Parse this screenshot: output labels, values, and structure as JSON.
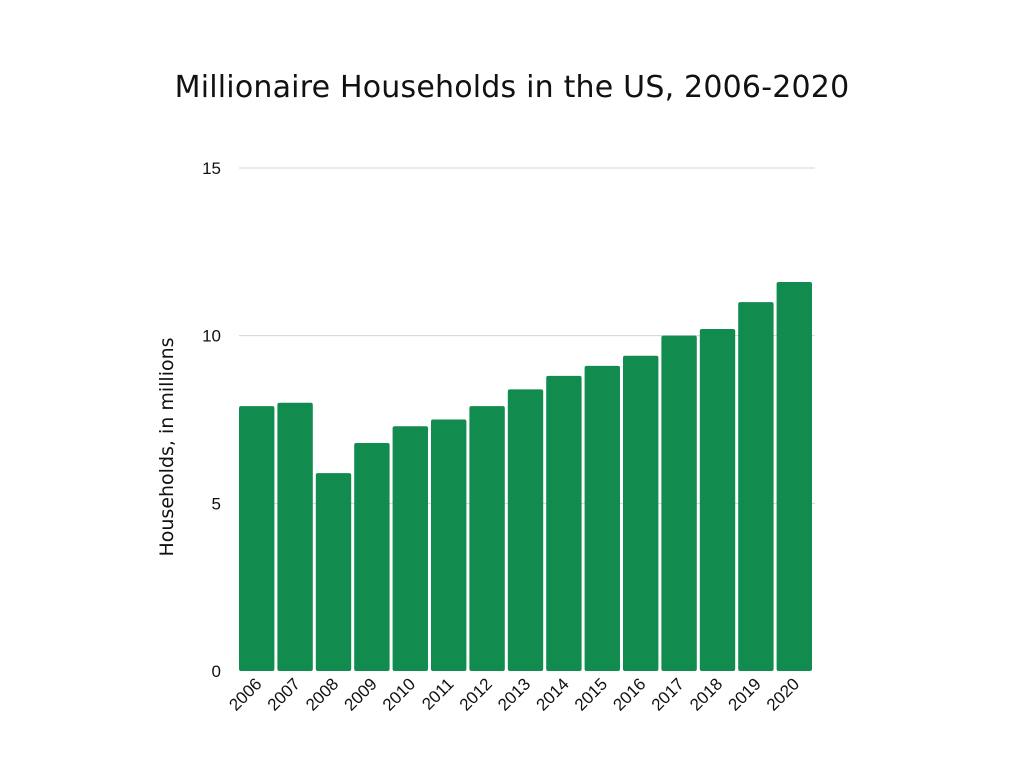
{
  "chart_data": {
    "type": "bar",
    "title": "Millionaire Households in the US, 2006-2020",
    "xlabel": "",
    "ylabel": "Households, in millions",
    "categories": [
      "2006",
      "2007",
      "2008",
      "2009",
      "2010",
      "2011",
      "2012",
      "2013",
      "2014",
      "2015",
      "2016",
      "2017",
      "2018",
      "2019",
      "2020"
    ],
    "values": [
      7.9,
      8.0,
      5.9,
      6.8,
      7.3,
      7.5,
      7.9,
      8.4,
      8.8,
      9.1,
      9.4,
      10.0,
      10.2,
      11.0,
      11.6
    ],
    "ylim": [
      0,
      15
    ],
    "yticks": [
      "0",
      "5",
      "10",
      "15"
    ],
    "grid": true,
    "bar_color": "#128b4f",
    "grid_color": "#d4d4d4"
  }
}
